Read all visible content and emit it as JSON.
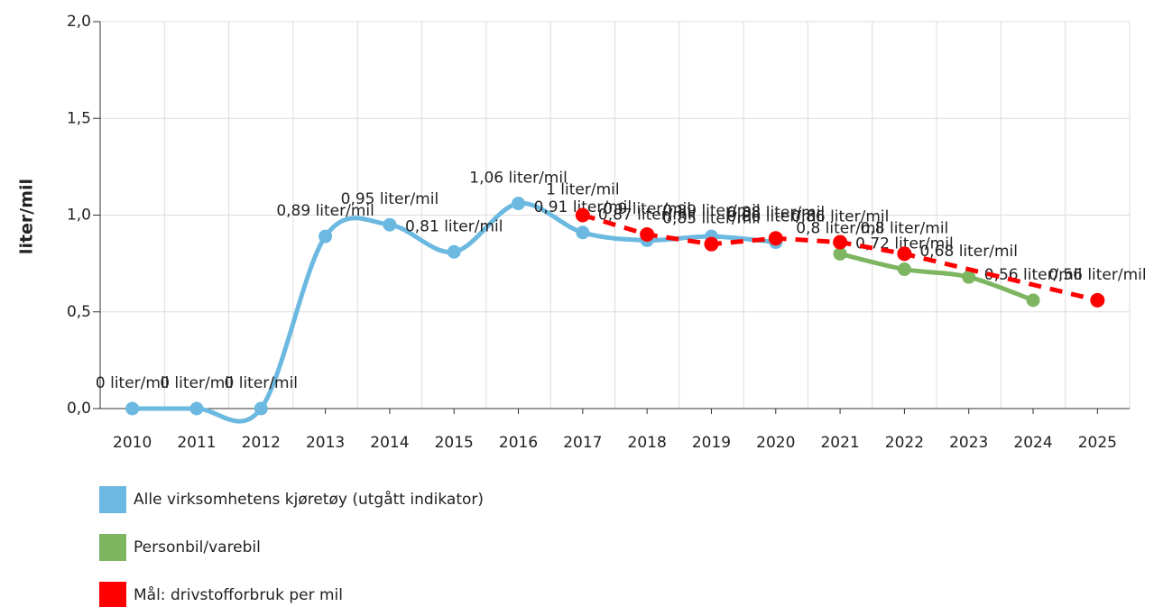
{
  "chart_data": {
    "type": "line",
    "ylabel": "liter/mil",
    "xlim": [
      2009.5,
      2025.5
    ],
    "xticks": [
      2010,
      2011,
      2012,
      2013,
      2014,
      2015,
      2016,
      2017,
      2018,
      2019,
      2020,
      2021,
      2022,
      2023,
      2024,
      2025
    ],
    "ylim": [
      0,
      2
    ],
    "yticks": [
      {
        "value": 0,
        "label": "0,0"
      },
      {
        "value": 0.5,
        "label": "0,5"
      },
      {
        "value": 1,
        "label": "1,0"
      },
      {
        "value": 1.5,
        "label": "1,5"
      },
      {
        "value": 2,
        "label": "2,0"
      }
    ],
    "grid": true,
    "legend": "bottom",
    "series": [
      {
        "name": "Alle virksomhetens kjøretøy (utgått indikator)",
        "color": "#6bb9e0",
        "smooth": true,
        "x": [
          2010,
          2011,
          2012,
          2013,
          2014,
          2015,
          2016,
          2017,
          2018,
          2019,
          2020
        ],
        "values": [
          0,
          0,
          0,
          0.89,
          0.95,
          0.81,
          1.06,
          0.91,
          0.87,
          0.89,
          0.86
        ],
        "value_labels": [
          "0 liter/mil",
          "0 liter/mil",
          "0 liter/mil",
          "0,89 liter/mil",
          "0,95 liter/mil",
          "0,81 liter/mil",
          "1,06 liter/mil",
          "0,91 liter/mil",
          "0,87 liter/mil",
          "0,89 liter/mil",
          "0,86 liter/mil"
        ]
      },
      {
        "name": "Personbil/varebil",
        "color": "#7db561",
        "smooth": true,
        "x": [
          2021,
          2022,
          2023,
          2024
        ],
        "values": [
          0.8,
          0.72,
          0.68,
          0.56
        ],
        "value_labels": [
          "0,8 liter/mil",
          "0,72 liter/mil",
          "0,68 liter/mil",
          "0,56 liter/mil"
        ]
      },
      {
        "name": "Mål: drivstofforbruk per mil",
        "color": "#ff0000",
        "dashed": true,
        "x": [
          2017,
          2018,
          2019,
          2020,
          2021,
          2022,
          2025
        ],
        "values": [
          1,
          0.9,
          0.85,
          0.88,
          0.86,
          0.8,
          0.56
        ],
        "value_labels": [
          "1 liter/mil",
          "0,9 liter/mil",
          "0,85 liter/mil",
          "0,88 liter/mil",
          "0,86 liter/mil",
          "0,8 liter/mil",
          "0,56 liter/mil"
        ]
      }
    ]
  }
}
